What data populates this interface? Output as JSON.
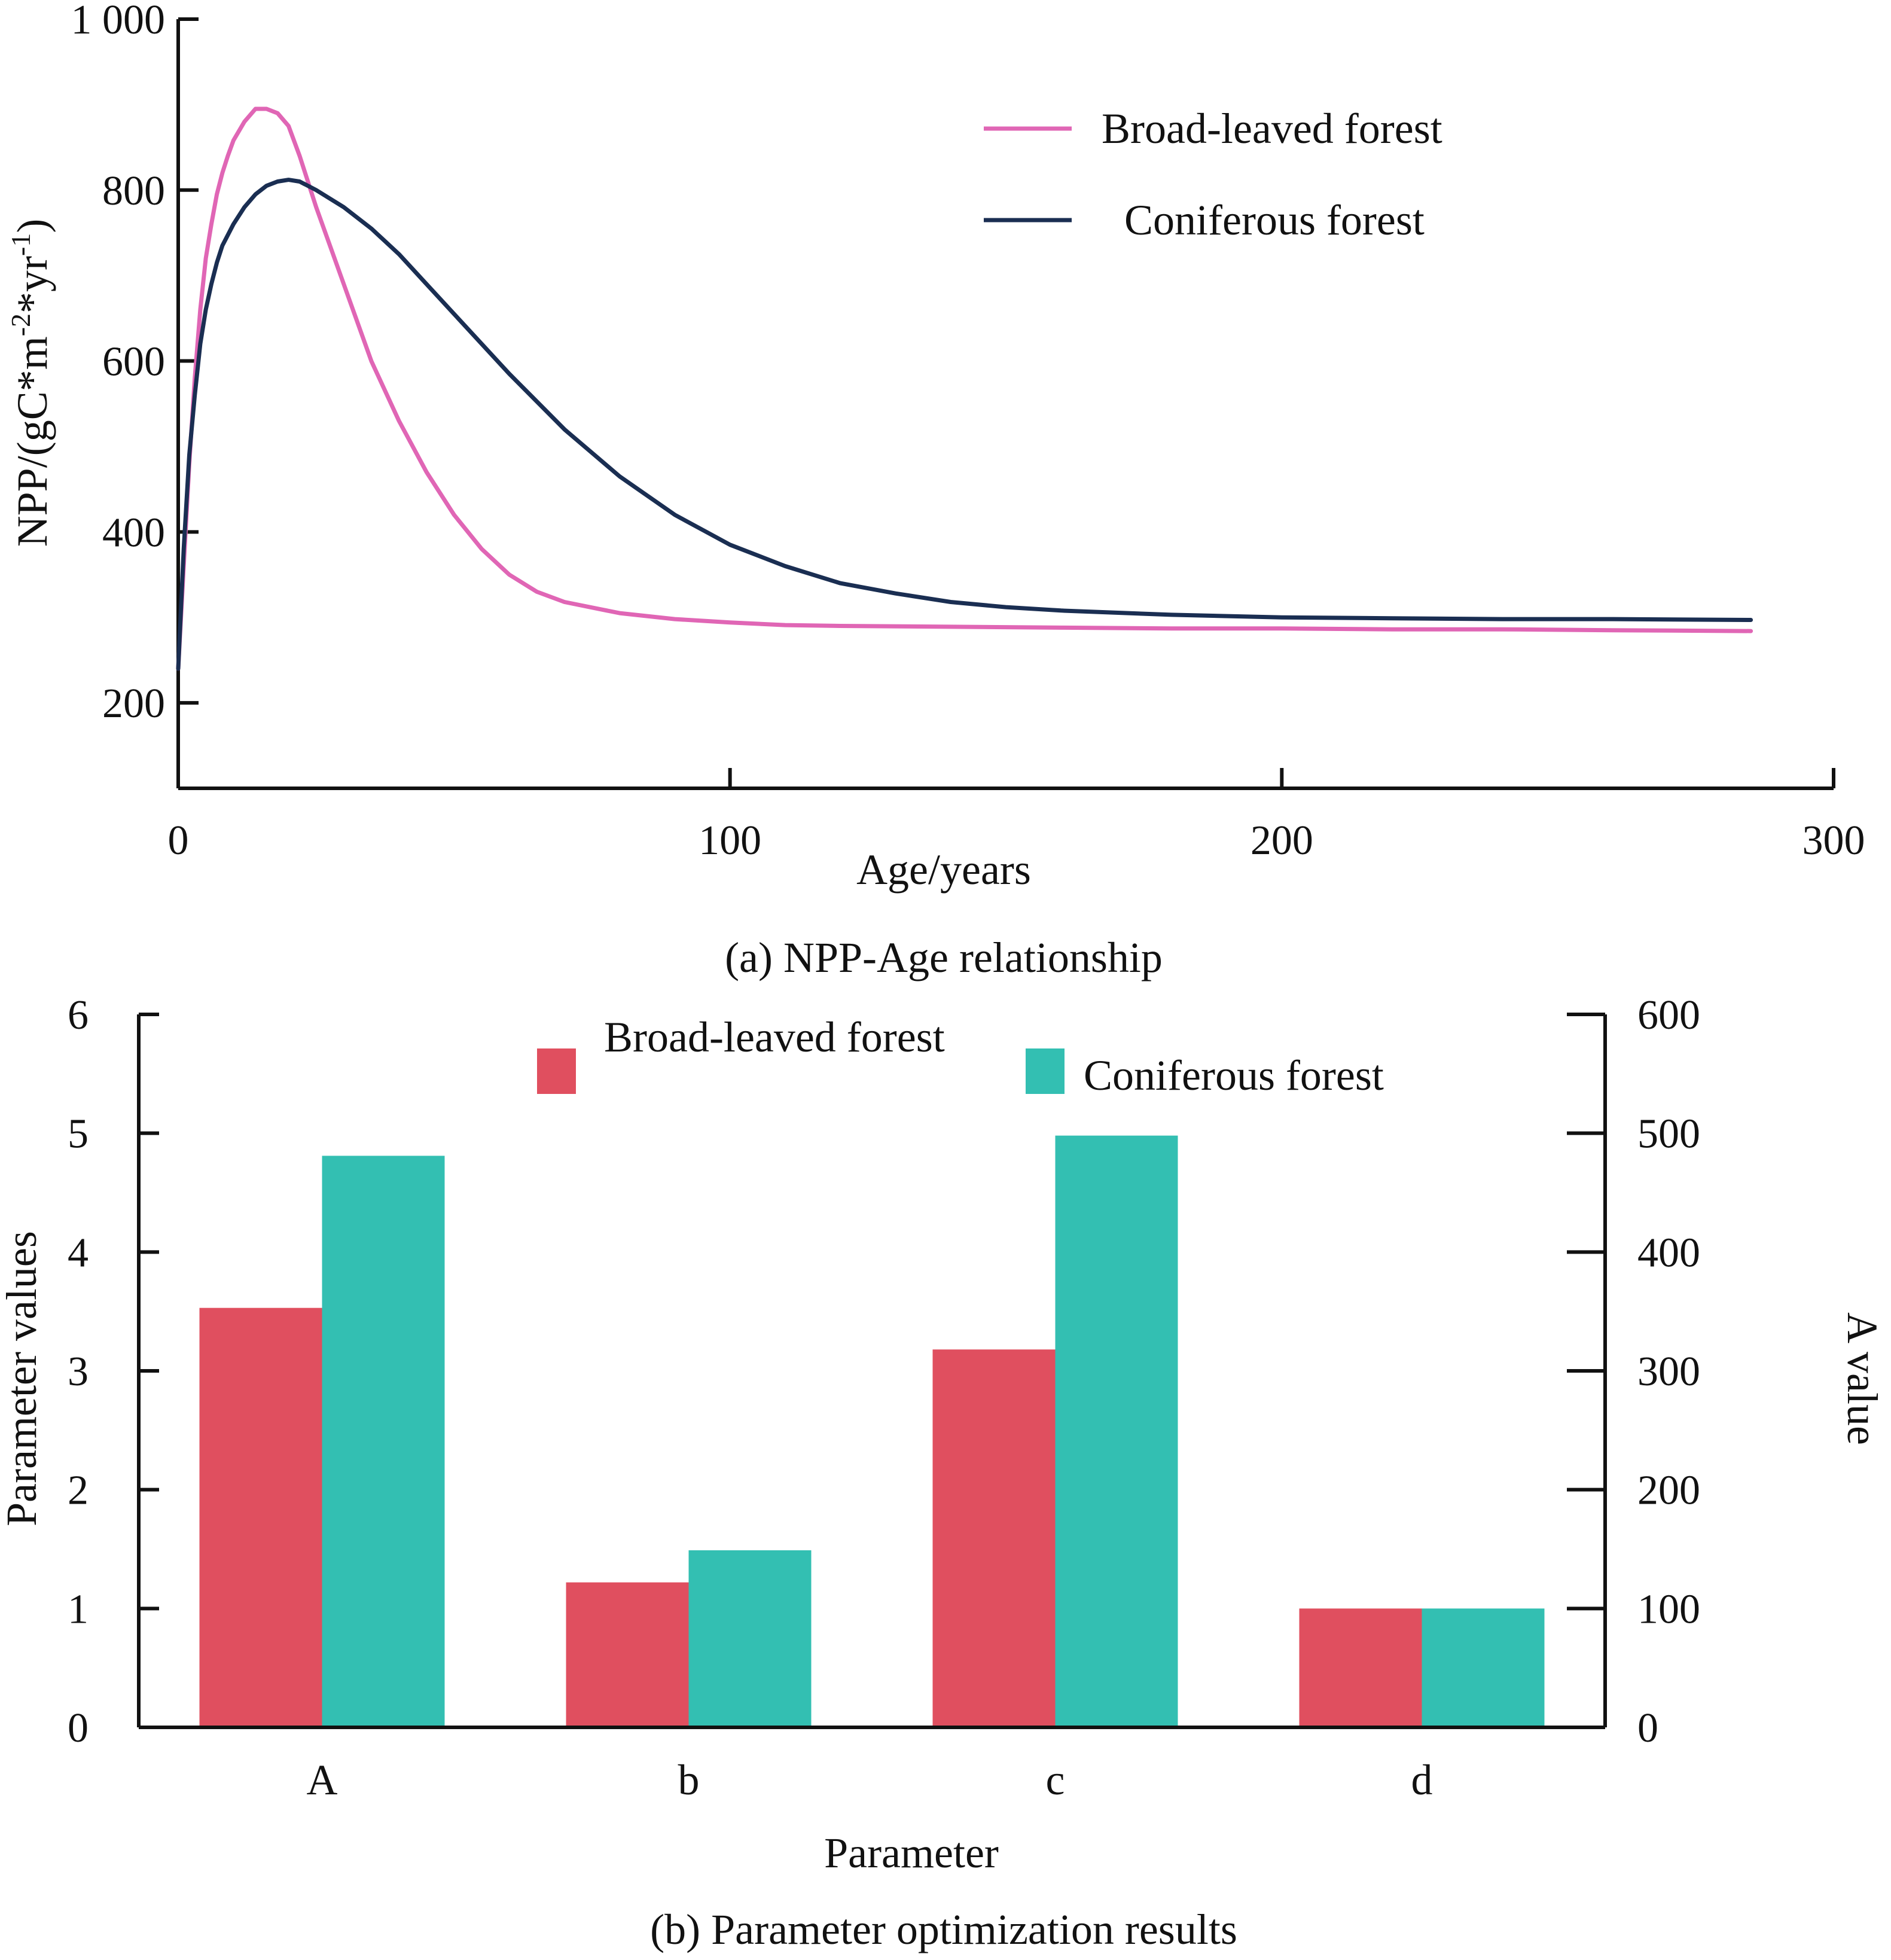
{
  "chart_data": [
    {
      "type": "line",
      "caption": "(a) NPP-Age relationship",
      "xlabel": "Age/years",
      "ylabel": "NPP/(gC*m",
      "ylabel_sup1": "-2",
      "ylabel_mid": "*yr",
      "ylabel_sup2": "-1",
      "ylabel_end": ")",
      "xlim": [
        0,
        300
      ],
      "ylim": [
        100,
        1000
      ],
      "xticks": [
        0,
        100,
        200,
        300
      ],
      "xtick_labels": [
        "0",
        "100",
        "200",
        "300"
      ],
      "yticks": [
        200,
        400,
        600,
        800,
        1000
      ],
      "ytick_labels": [
        "200",
        "400",
        "600",
        "800",
        "1 000"
      ],
      "legend_position": "top-right",
      "series": [
        {
          "name": "Broad-leaved forest",
          "color": "#e066b5",
          "x": [
            0,
            1,
            2,
            3,
            4,
            5,
            6,
            7,
            8,
            9,
            10,
            12,
            14,
            16,
            18,
            20,
            22,
            25,
            30,
            35,
            40,
            45,
            50,
            55,
            60,
            65,
            70,
            80,
            90,
            100,
            110,
            120,
            140,
            160,
            180,
            200,
            220,
            240,
            260,
            285
          ],
          "y": [
            240,
            360,
            480,
            580,
            660,
            720,
            760,
            795,
            820,
            840,
            858,
            880,
            895,
            895,
            890,
            875,
            840,
            780,
            690,
            600,
            530,
            470,
            420,
            380,
            350,
            330,
            318,
            305,
            298,
            294,
            291,
            290,
            289,
            288,
            287,
            287,
            286,
            286,
            285,
            284
          ]
        },
        {
          "name": "Coniferous forest",
          "color": "#1a2e52",
          "x": [
            0,
            1,
            2,
            3,
            4,
            5,
            6,
            7,
            8,
            10,
            12,
            14,
            16,
            18,
            20,
            22,
            25,
            30,
            35,
            40,
            45,
            50,
            60,
            70,
            80,
            90,
            100,
            110,
            120,
            130,
            140,
            150,
            160,
            180,
            200,
            220,
            240,
            260,
            285
          ],
          "y": [
            240,
            380,
            490,
            560,
            620,
            660,
            690,
            715,
            735,
            760,
            780,
            795,
            805,
            810,
            812,
            810,
            800,
            780,
            755,
            725,
            690,
            655,
            585,
            520,
            465,
            420,
            385,
            360,
            340,
            328,
            318,
            312,
            308,
            303,
            300,
            299,
            298,
            298,
            297
          ]
        }
      ]
    },
    {
      "type": "bar",
      "caption": "(b) Parameter optimization results",
      "xlabel": "Parameter",
      "ylabel": "Parameter values",
      "ylabel_right": "A value",
      "categories": [
        "A",
        "b",
        "c",
        "d"
      ],
      "ylim": [
        0,
        6
      ],
      "ylim_right": [
        0,
        600
      ],
      "yticks": [
        0,
        1,
        2,
        3,
        4,
        5,
        6
      ],
      "ytick_labels": [
        "0",
        "1",
        "2",
        "3",
        "4",
        "5",
        "6"
      ],
      "yticks_right": [
        0,
        100,
        200,
        300,
        400,
        500,
        600
      ],
      "ytick_labels_right": [
        "0",
        "100",
        "200",
        "300",
        "400",
        "500",
        "600"
      ],
      "legend_position": "top-center",
      "series": [
        {
          "name": "Broad-leaved forest",
          "color": "#e04f5f",
          "values": [
            3.53,
            1.22,
            3.18,
            1.0
          ]
        },
        {
          "name": "Coniferous forest",
          "color": "#33bfb2",
          "values": [
            4.81,
            1.49,
            4.98,
            1.0
          ]
        }
      ]
    }
  ]
}
